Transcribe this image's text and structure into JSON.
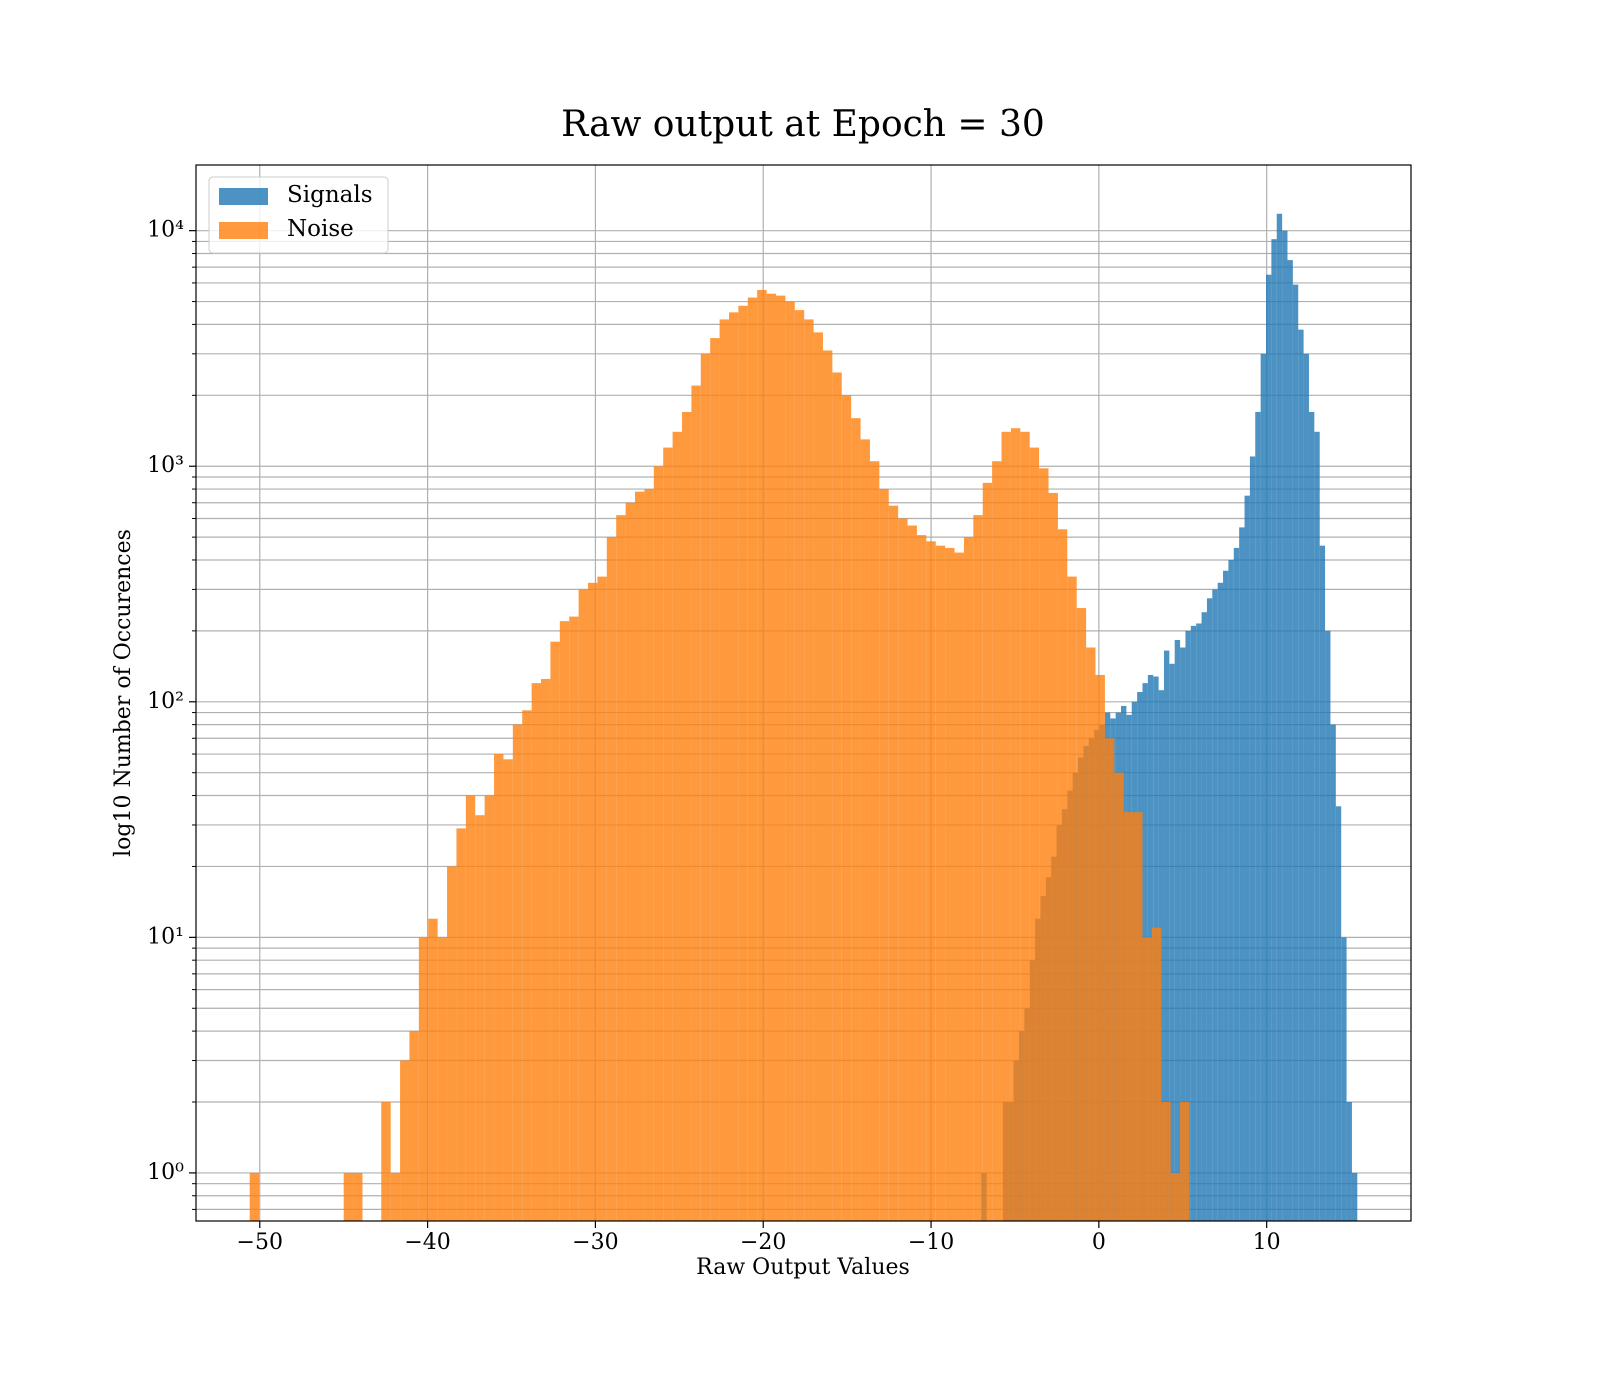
{
  "chart_data": {
    "type": "histogram",
    "title": "Raw output at Epoch = 30",
    "xlabel": "Raw Output Values",
    "ylabel": "log10 Number of Occurences",
    "yscale": "log",
    "grid": true,
    "legend": "upper left",
    "alpha": 0.8,
    "xlim": [
      -53.8,
      18.6
    ],
    "ylim": [
      0.625,
      19000
    ],
    "xticks": [
      {
        "value": -50,
        "label": "−50"
      },
      {
        "value": -40,
        "label": "−40"
      },
      {
        "value": -30,
        "label": "−30"
      },
      {
        "value": -20,
        "label": "−20"
      },
      {
        "value": -10,
        "label": "−10"
      },
      0,
      10
    ],
    "yticks": [
      {
        "value": 1,
        "label": "10⁰"
      },
      {
        "value": 10,
        "label": "10¹"
      },
      {
        "value": 100,
        "label": "10²"
      },
      {
        "value": 1000,
        "label": "10³"
      },
      {
        "value": 10000,
        "label": "10⁴"
      }
    ],
    "yminorticks": [
      0.7,
      0.8,
      0.9,
      2,
      3,
      4,
      5,
      6,
      7,
      8,
      9,
      20,
      30,
      40,
      50,
      60,
      70,
      80,
      90,
      200,
      300,
      400,
      500,
      600,
      700,
      800,
      900,
      2000,
      3000,
      4000,
      5000,
      6000,
      7000,
      8000,
      9000
    ],
    "series": [
      {
        "name": "Signals",
        "color": "#1f77b4",
        "bins": [
          -7,
          -6.68,
          -6.36,
          -6.04,
          -5.72,
          -5.4,
          -5.08,
          -4.76,
          -4.44,
          -4.12,
          -3.8,
          -3.48,
          -3.16,
          -2.84,
          -2.52,
          -2.2,
          -1.88,
          -1.56,
          -1.24,
          -0.92,
          -0.6,
          -0.28,
          0.04,
          0.36,
          0.68,
          1.0,
          1.32,
          1.64,
          1.96,
          2.28,
          2.6,
          2.92,
          3.24,
          3.56,
          3.88,
          4.2,
          4.52,
          4.84,
          5.16,
          5.48,
          5.8,
          6.12,
          6.44,
          6.76,
          7.08,
          7.4,
          7.72,
          8.04,
          8.36,
          8.68,
          9.0,
          9.32,
          9.64,
          9.96,
          10.28,
          10.6,
          10.92,
          11.24,
          11.56,
          11.88,
          12.2,
          12.52,
          12.84,
          13.16,
          13.48,
          13.8,
          14.12,
          14.44,
          14.76,
          15.08,
          15.4
        ],
        "values": [
          1,
          0,
          0,
          0,
          2,
          2,
          3,
          4,
          5,
          8,
          12,
          15,
          18,
          22,
          30,
          35,
          42,
          50,
          58,
          65,
          70,
          76,
          80,
          90,
          85,
          90,
          96,
          88,
          100,
          110,
          120,
          130,
          128,
          112,
          165,
          145,
          183,
          170,
          200,
          210,
          215,
          240,
          275,
          300,
          320,
          360,
          400,
          450,
          550,
          750,
          1100,
          1700,
          3000,
          6500,
          9200,
          11800,
          10000,
          7500,
          5900,
          3800,
          3000,
          1700,
          1400,
          460,
          200,
          80,
          36,
          10,
          2,
          1
        ]
      },
      {
        "name": "Noise",
        "color": "#ff7f0e",
        "bins": [
          -50.6,
          -50.04,
          -49.48,
          -48.92,
          -48.36,
          -47.8,
          -47.24,
          -46.68,
          -46.12,
          -45.56,
          -45.0,
          -44.44,
          -43.88,
          -43.32,
          -42.76,
          -42.2,
          -41.64,
          -41.08,
          -40.52,
          -39.96,
          -39.4,
          -38.84,
          -38.28,
          -37.72,
          -37.16,
          -36.6,
          -36.04,
          -35.48,
          -34.92,
          -34.36,
          -33.8,
          -33.24,
          -32.68,
          -32.12,
          -31.56,
          -31.0,
          -30.44,
          -29.88,
          -29.32,
          -28.76,
          -28.2,
          -27.64,
          -27.08,
          -26.52,
          -25.96,
          -25.4,
          -24.84,
          -24.28,
          -23.72,
          -23.16,
          -22.6,
          -22.04,
          -21.48,
          -20.92,
          -20.36,
          -19.8,
          -19.24,
          -18.68,
          -18.12,
          -17.56,
          -17.0,
          -16.44,
          -15.88,
          -15.32,
          -14.76,
          -14.2,
          -13.64,
          -13.08,
          -12.52,
          -11.96,
          -11.4,
          -10.84,
          -10.28,
          -9.72,
          -9.16,
          -8.6,
          -8.04,
          -7.48,
          -6.92,
          -6.36,
          -5.8,
          -5.24,
          -4.68,
          -4.12,
          -3.56,
          -3.0,
          -2.44,
          -1.88,
          -1.32,
          -0.76,
          -0.2,
          0.36,
          0.92,
          1.48,
          2.04,
          2.6,
          3.16,
          3.72,
          4.28,
          4.84,
          5.4
        ],
        "values": [
          1,
          0,
          0,
          0,
          0,
          0,
          0,
          0,
          0,
          0,
          1,
          1,
          0,
          0,
          2,
          1,
          3,
          4,
          10,
          12,
          10,
          20,
          29,
          40,
          33,
          40,
          60,
          57,
          80,
          92,
          120,
          125,
          180,
          220,
          230,
          300,
          320,
          340,
          500,
          620,
          700,
          780,
          800,
          1000,
          1200,
          1400,
          1700,
          2200,
          3000,
          3500,
          4200,
          4500,
          4800,
          5200,
          5600,
          5400,
          5300,
          5000,
          4600,
          4200,
          3700,
          3100,
          2500,
          2000,
          1600,
          1300,
          1050,
          800,
          680,
          600,
          560,
          510,
          480,
          460,
          450,
          430,
          500,
          620,
          850,
          1050,
          1400,
          1450,
          1400,
          1200,
          980,
          770,
          540,
          340,
          250,
          170,
          130,
          70,
          50,
          34,
          34,
          10,
          11,
          2,
          1,
          2
        ]
      }
    ]
  }
}
